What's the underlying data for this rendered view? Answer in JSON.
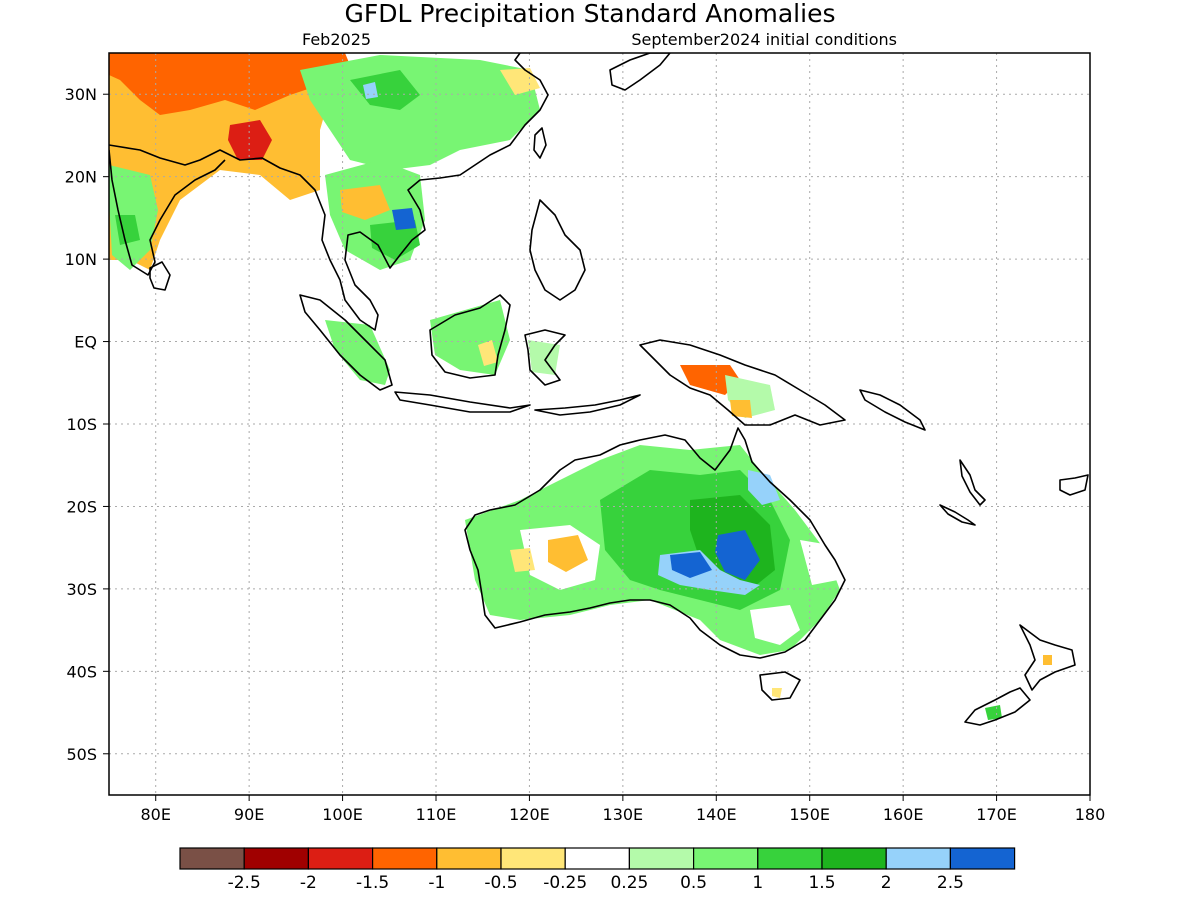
{
  "header": {
    "title": "GFDL Precipitation Standard Anomalies",
    "valid_month": "Feb2025",
    "init": "September2024 initial conditions"
  },
  "map": {
    "lon_range": [
      75,
      180
    ],
    "lat_range": [
      -55,
      35
    ],
    "lon_ticks": [
      {
        "lon": 80,
        "label": "80E"
      },
      {
        "lon": 90,
        "label": "90E"
      },
      {
        "lon": 100,
        "label": "100E"
      },
      {
        "lon": 110,
        "label": "110E"
      },
      {
        "lon": 120,
        "label": "120E"
      },
      {
        "lon": 130,
        "label": "130E"
      },
      {
        "lon": 140,
        "label": "140E"
      },
      {
        "lon": 150,
        "label": "150E"
      },
      {
        "lon": 160,
        "label": "160E"
      },
      {
        "lon": 170,
        "label": "170E"
      },
      {
        "lon": 180,
        "label": "180"
      }
    ],
    "lat_ticks": [
      {
        "lat": 30,
        "label": "30N"
      },
      {
        "lat": 20,
        "label": "20N"
      },
      {
        "lat": 10,
        "label": "10N"
      },
      {
        "lat": 0,
        "label": "EQ"
      },
      {
        "lat": -10,
        "label": "10S"
      },
      {
        "lat": -20,
        "label": "20S"
      },
      {
        "lat": -30,
        "label": "30S"
      },
      {
        "lat": -40,
        "label": "40S"
      },
      {
        "lat": -50,
        "label": "50S"
      }
    ],
    "grid": true
  },
  "legend": {
    "colors": [
      "#7a5046",
      "#a00000",
      "#dc1e14",
      "#ff6400",
      "#ffbe32",
      "#ffe678",
      "#ffffff",
      "#b4faaa",
      "#78f573",
      "#37d23c",
      "#1eb41e",
      "#96d2fa",
      "#1464d2"
    ],
    "labels": [
      "-2.5",
      "-2",
      "-1.5",
      "-1",
      "-0.5",
      "-0.25",
      "0.25",
      "0.5",
      "1",
      "1.5",
      "2",
      "2.5"
    ]
  }
}
